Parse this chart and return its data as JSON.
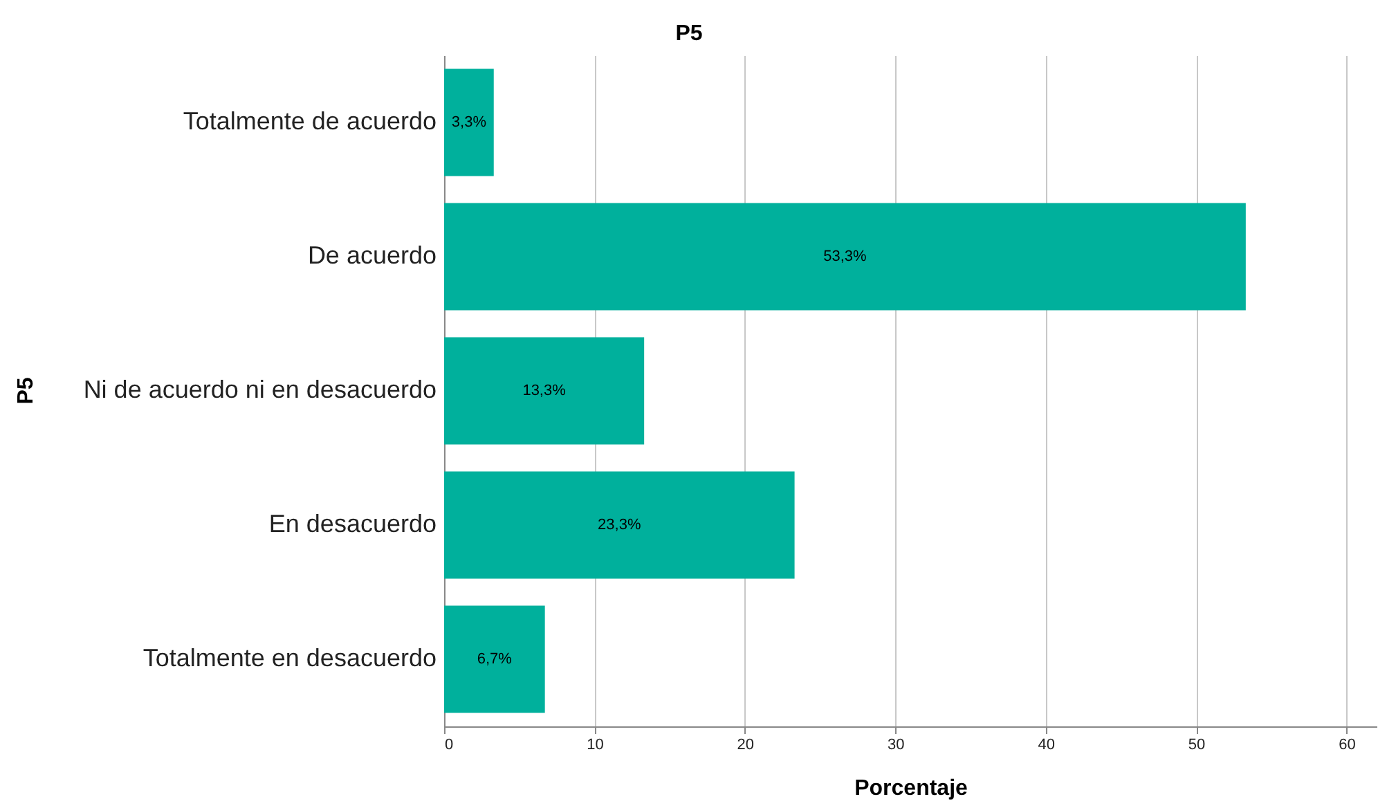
{
  "chart_data": {
    "type": "bar",
    "orientation": "horizontal",
    "title": "P5",
    "xlabel": "Porcentaje",
    "ylabel": "P5",
    "categories": [
      "Totalmente de acuerdo",
      "De acuerdo",
      "Ni de acuerdo ni en desacuerdo",
      "En desacuerdo",
      "Totalmente en desacuerdo"
    ],
    "values": [
      3.3,
      53.3,
      13.3,
      23.3,
      6.7
    ],
    "value_labels": [
      "3,3%",
      "53,3%",
      "13,3%",
      "23,3%",
      "6,7%"
    ],
    "color": "#00b09c",
    "xlim": [
      0,
      62
    ],
    "xticks": [
      0,
      10,
      20,
      30,
      40,
      50,
      60
    ],
    "grid": "x"
  }
}
